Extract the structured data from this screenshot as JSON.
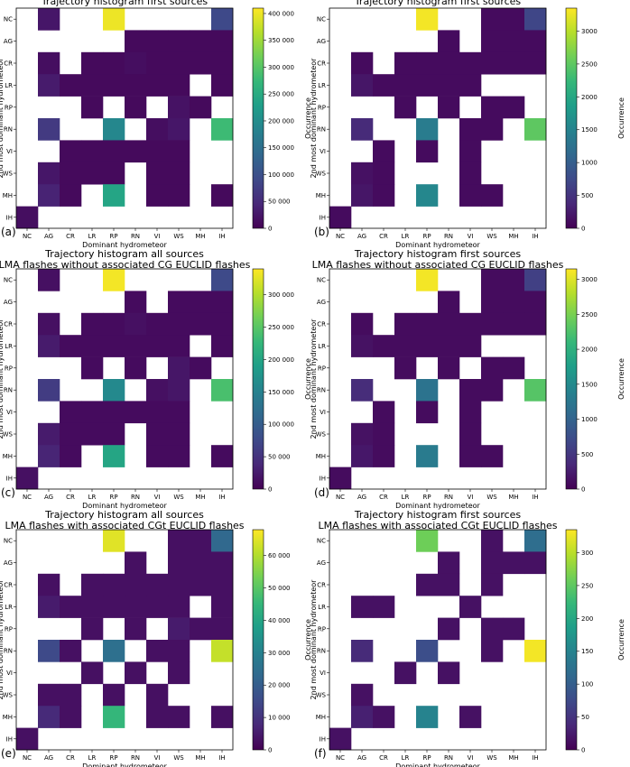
{
  "colormap_stops": [
    "#440154",
    "#482878",
    "#3e4a89",
    "#31688e",
    "#26828e",
    "#1f9e89",
    "#35b779",
    "#6ece58",
    "#b5de2b",
    "#fde725"
  ],
  "chart_data": [
    {
      "type": "heatmap",
      "panel_label": "(a)",
      "title": "Trajectory histogram first sources",
      "subtitle": "",
      "xlabel": "Dominant hydrometeor",
      "ylabel": "2nd most dominant hydrometeor",
      "categories": [
        "NC",
        "AG",
        "CR",
        "LR",
        "RP",
        "RN",
        "VI",
        "WS",
        "MH",
        "IH"
      ],
      "colorbar_label": "Occurrence",
      "vmax": 410000,
      "colorbar_ticks": [
        0,
        50000,
        100000,
        150000,
        200000,
        250000,
        300000,
        350000,
        400000
      ],
      "colorbar_tick_labels": [
        "0",
        "50 000",
        "100 000",
        "150 000",
        "200 000",
        "250 000",
        "300 000",
        "350 000",
        "400 000"
      ],
      "values": [
        [
          null,
          25000,
          null,
          null,
          400000,
          null,
          null,
          null,
          null,
          90000
        ],
        [
          null,
          null,
          null,
          null,
          null,
          10000,
          10000,
          10000,
          10000,
          10000
        ],
        [
          null,
          15000,
          null,
          10000,
          10000,
          15000,
          10000,
          10000,
          10000,
          10000
        ],
        [
          null,
          30000,
          10000,
          10000,
          10000,
          10000,
          10000,
          10000,
          null,
          10000
        ],
        [
          null,
          null,
          null,
          10000,
          null,
          10000,
          null,
          20000,
          10000,
          null
        ],
        [
          null,
          70000,
          null,
          null,
          190000,
          null,
          15000,
          25000,
          null,
          280000
        ],
        [
          null,
          null,
          10000,
          10000,
          10000,
          10000,
          10000,
          10000,
          null,
          null
        ],
        [
          null,
          25000,
          10000,
          10000,
          10000,
          null,
          10000,
          10000,
          null,
          null
        ],
        [
          null,
          40000,
          10000,
          null,
          240000,
          null,
          10000,
          10000,
          null,
          10000
        ],
        [
          15000,
          null,
          null,
          null,
          null,
          null,
          null,
          null,
          null,
          null
        ]
      ]
    },
    {
      "type": "heatmap",
      "panel_label": "(b)",
      "title": "Trajectory histogram first sources",
      "subtitle": "",
      "xlabel": "Dominant hydrometeor",
      "ylabel": "2nd most dominant hydrometeor",
      "categories": [
        "NC",
        "AG",
        "CR",
        "LR",
        "RP",
        "RN",
        "VI",
        "WS",
        "MH",
        "IH"
      ],
      "colorbar_label": "Occurrence",
      "vmax": 3350,
      "colorbar_ticks": [
        0,
        500,
        1000,
        1500,
        2000,
        2500,
        3000
      ],
      "colorbar_tick_labels": [
        "0",
        "500",
        "1000",
        "1500",
        "2000",
        "2500",
        "3000"
      ],
      "values": [
        [
          null,
          null,
          null,
          null,
          3300,
          null,
          null,
          100,
          100,
          700
        ],
        [
          null,
          null,
          null,
          null,
          null,
          100,
          null,
          100,
          100,
          100
        ],
        [
          null,
          100,
          null,
          100,
          100,
          100,
          100,
          100,
          100,
          100
        ],
        [
          null,
          200,
          100,
          100,
          100,
          100,
          100,
          null,
          null,
          null
        ],
        [
          null,
          null,
          null,
          100,
          null,
          100,
          null,
          100,
          100,
          null
        ],
        [
          null,
          400,
          null,
          null,
          1400,
          null,
          100,
          100,
          null,
          2500
        ],
        [
          null,
          null,
          100,
          null,
          100,
          null,
          100,
          null,
          null,
          null
        ],
        [
          null,
          150,
          100,
          null,
          null,
          null,
          100,
          null,
          null,
          null
        ],
        [
          null,
          200,
          100,
          null,
          1550,
          null,
          100,
          100,
          null,
          null
        ],
        [
          100,
          null,
          null,
          null,
          null,
          null,
          null,
          null,
          null,
          null
        ]
      ]
    },
    {
      "type": "heatmap",
      "panel_label": "(c)",
      "title": "Trajectory histogram all sources",
      "subtitle": "LMA flashes without associated CG EUCLID flashes",
      "xlabel": "Dominant hydrometeor",
      "ylabel": "2nd most dominant hydrometeor",
      "categories": [
        "NC",
        "AG",
        "CR",
        "LR",
        "RP",
        "RN",
        "VI",
        "WS",
        "MH",
        "IH"
      ],
      "colorbar_label": "Occurrence",
      "vmax": 340000,
      "colorbar_ticks": [
        0,
        50000,
        100000,
        150000,
        200000,
        250000,
        300000
      ],
      "colorbar_tick_labels": [
        "0",
        "50 000",
        "100 000",
        "150 000",
        "200 000",
        "250 000",
        "300 000"
      ],
      "values": [
        [
          null,
          15000,
          null,
          null,
          335000,
          null,
          null,
          null,
          null,
          75000
        ],
        [
          null,
          null,
          null,
          null,
          null,
          10000,
          null,
          10000,
          10000,
          10000
        ],
        [
          null,
          15000,
          null,
          10000,
          10000,
          15000,
          10000,
          10000,
          10000,
          10000
        ],
        [
          null,
          25000,
          10000,
          10000,
          10000,
          10000,
          10000,
          10000,
          null,
          10000
        ],
        [
          null,
          null,
          null,
          10000,
          null,
          10000,
          null,
          20000,
          10000,
          null
        ],
        [
          null,
          60000,
          null,
          null,
          160000,
          null,
          15000,
          20000,
          null,
          240000
        ],
        [
          null,
          null,
          10000,
          10000,
          10000,
          10000,
          10000,
          10000,
          null,
          null
        ],
        [
          null,
          25000,
          10000,
          10000,
          10000,
          null,
          10000,
          10000,
          null,
          null
        ],
        [
          null,
          35000,
          10000,
          null,
          200000,
          null,
          10000,
          10000,
          null,
          10000
        ],
        [
          15000,
          null,
          null,
          null,
          null,
          null,
          null,
          null,
          null,
          null
        ]
      ]
    },
    {
      "type": "heatmap",
      "panel_label": "(d)",
      "title": "Trajectory histogram first sources",
      "subtitle": "LMA flashes without associated CG EUCLID flashes",
      "xlabel": "Dominant hydrometeor",
      "ylabel": "2nd most dominant hydrometeor",
      "categories": [
        "NC",
        "AG",
        "CR",
        "LR",
        "RP",
        "RN",
        "VI",
        "WS",
        "MH",
        "IH"
      ],
      "colorbar_label": "Occurrence",
      "vmax": 3150,
      "colorbar_ticks": [
        0,
        500,
        1000,
        1500,
        2000,
        2500,
        3000
      ],
      "colorbar_tick_labels": [
        "0",
        "500",
        "1000",
        "1500",
        "2000",
        "2500",
        "3000"
      ],
      "values": [
        [
          null,
          null,
          null,
          null,
          3100,
          null,
          null,
          100,
          100,
          600
        ],
        [
          null,
          null,
          null,
          null,
          null,
          100,
          null,
          100,
          100,
          100
        ],
        [
          null,
          100,
          null,
          100,
          100,
          100,
          100,
          100,
          100,
          100
        ],
        [
          null,
          150,
          100,
          100,
          100,
          100,
          100,
          null,
          null,
          null
        ],
        [
          null,
          null,
          null,
          100,
          null,
          100,
          null,
          100,
          100,
          null
        ],
        [
          null,
          400,
          null,
          null,
          1200,
          null,
          100,
          100,
          null,
          2300
        ],
        [
          null,
          null,
          100,
          null,
          100,
          null,
          100,
          null,
          null,
          null
        ],
        [
          null,
          150,
          100,
          null,
          null,
          null,
          100,
          null,
          null,
          null
        ],
        [
          null,
          200,
          100,
          null,
          1300,
          null,
          100,
          100,
          null,
          null
        ],
        [
          100,
          null,
          null,
          null,
          null,
          null,
          null,
          null,
          null,
          null
        ]
      ]
    },
    {
      "type": "heatmap",
      "panel_label": "(e)",
      "title": "Trajectory histogram all sources",
      "subtitle": "LMA flashes with associated CGt EUCLID flashes",
      "xlabel": "Dominant hydrometeor",
      "ylabel": "2nd most dominant hydrometeor",
      "categories": [
        "NC",
        "AG",
        "CR",
        "LR",
        "RP",
        "RN",
        "VI",
        "WS",
        "MH",
        "IH"
      ],
      "colorbar_label": "Occurrence",
      "vmax": 68000,
      "colorbar_ticks": [
        0,
        10000,
        20000,
        30000,
        40000,
        50000,
        60000
      ],
      "colorbar_tick_labels": [
        "0",
        "10 000",
        "20 000",
        "30 000",
        "40 000",
        "50 000",
        "60 000"
      ],
      "values": [
        [
          null,
          null,
          null,
          null,
          65000,
          null,
          null,
          3000,
          3000,
          23000
        ],
        [
          null,
          null,
          null,
          null,
          null,
          3000,
          null,
          3000,
          3000,
          3000
        ],
        [
          null,
          3000,
          null,
          3000,
          3000,
          3000,
          3000,
          3000,
          3000,
          3000
        ],
        [
          null,
          5000,
          3000,
          3000,
          3000,
          3000,
          3000,
          3000,
          null,
          3000
        ],
        [
          null,
          null,
          null,
          3000,
          null,
          3000,
          null,
          5000,
          3000,
          3000
        ],
        [
          null,
          15000,
          3000,
          null,
          25000,
          null,
          3000,
          3000,
          null,
          62000
        ],
        [
          null,
          null,
          null,
          3000,
          null,
          3000,
          null,
          3000,
          null,
          null
        ],
        [
          null,
          3000,
          3000,
          null,
          3000,
          null,
          3000,
          null,
          null,
          null
        ],
        [
          null,
          8000,
          3000,
          null,
          45000,
          null,
          3000,
          3000,
          null,
          3000
        ],
        [
          3000,
          null,
          null,
          null,
          null,
          null,
          null,
          null,
          null,
          null
        ]
      ]
    },
    {
      "type": "heatmap",
      "panel_label": "(f)",
      "title": "Trajectory histogram first sources",
      "subtitle": "LMA flashes with associated CGt EUCLID flashes",
      "xlabel": "Dominant hydrometeor",
      "ylabel": "2nd most dominant hydrometeor",
      "categories": [
        "NC",
        "AG",
        "CR",
        "LR",
        "RP",
        "RN",
        "VI",
        "WS",
        "MH",
        "IH"
      ],
      "colorbar_label": "Occurrence",
      "vmax": 335,
      "colorbar_ticks": [
        0,
        50,
        100,
        150,
        200,
        250,
        300
      ],
      "colorbar_tick_labels": [
        "0",
        "50",
        "100",
        "150",
        "200",
        "250",
        "300"
      ],
      "values": [
        [
          null,
          null,
          null,
          null,
          260,
          null,
          null,
          15,
          null,
          120
        ],
        [
          null,
          null,
          null,
          null,
          null,
          15,
          null,
          15,
          15,
          15
        ],
        [
          null,
          null,
          null,
          null,
          15,
          15,
          null,
          15,
          null,
          null
        ],
        [
          null,
          15,
          15,
          null,
          null,
          null,
          15,
          null,
          null,
          null
        ],
        [
          null,
          null,
          null,
          null,
          null,
          15,
          null,
          15,
          15,
          null
        ],
        [
          null,
          40,
          null,
          null,
          80,
          null,
          null,
          15,
          null,
          330
        ],
        [
          null,
          null,
          null,
          15,
          null,
          15,
          null,
          null,
          null,
          null
        ],
        [
          null,
          15,
          null,
          null,
          null,
          null,
          null,
          null,
          null,
          null
        ],
        [
          null,
          30,
          15,
          null,
          150,
          null,
          15,
          null,
          null,
          null
        ],
        [
          15,
          null,
          null,
          null,
          null,
          null,
          null,
          null,
          null,
          null
        ]
      ]
    }
  ]
}
